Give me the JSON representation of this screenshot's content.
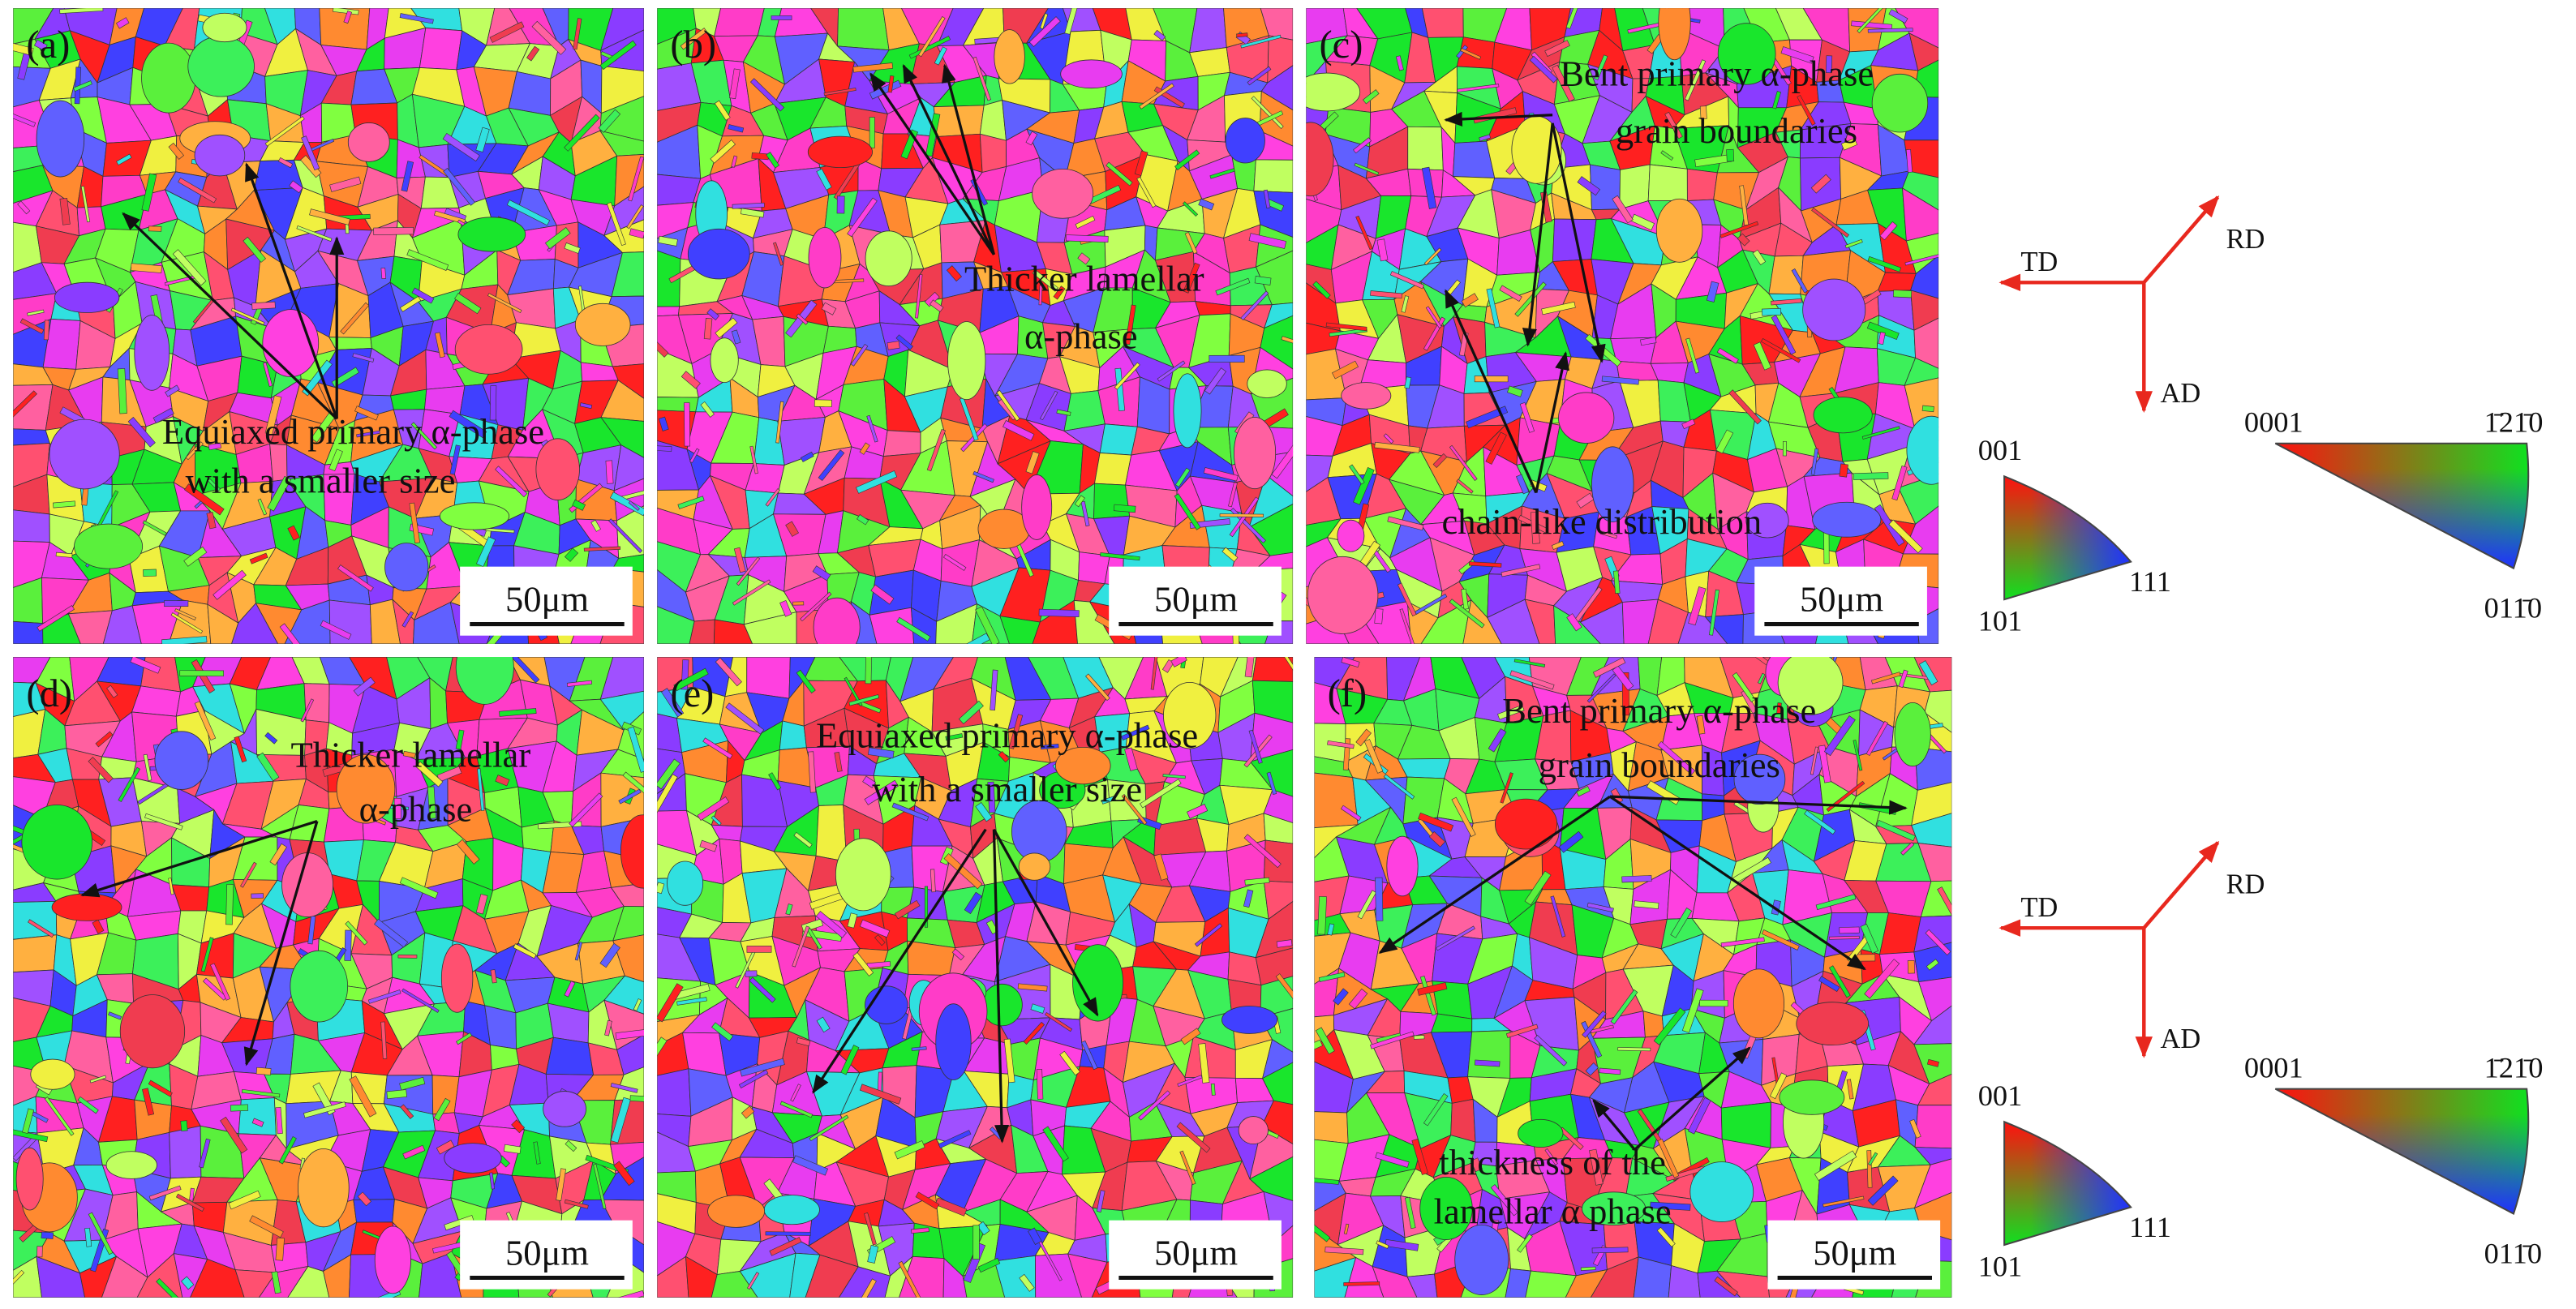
{
  "panels": [
    {
      "label": "(a)",
      "annotations": [
        "Equiaxed primary α-phase",
        "with a smaller size"
      ],
      "scale_bar": "50μm"
    },
    {
      "label": "(b)",
      "annotations": [
        "Thicker lamellar",
        "α-phase"
      ],
      "scale_bar": "50μm"
    },
    {
      "label": "(c)",
      "annotations": [
        "Bent primary α-phase",
        "grain boundaries",
        "chain-like distribution"
      ],
      "scale_bar": "50μm"
    },
    {
      "label": "(d)",
      "annotations": [
        "Thicker lamellar",
        "α-phase"
      ],
      "scale_bar": "50μm"
    },
    {
      "label": "(e)",
      "annotations": [
        "Equiaxed primary α-phase",
        "with a smaller size"
      ],
      "scale_bar": "50μm"
    },
    {
      "label": "(f)",
      "annotations": [
        "Bent primary  α-phase",
        "grain boundaries",
        "thickness of the",
        "lamellar α phase"
      ],
      "scale_bar": "50μm"
    }
  ],
  "legends": [
    {
      "axes": [
        "TD",
        "RD",
        "AD"
      ],
      "cubic_ipf": [
        "001",
        "101",
        "111"
      ],
      "hex_ipf": [
        "0001",
        "1̄21̄0",
        "011̄0"
      ]
    },
    {
      "axes": [
        "TD",
        "RD",
        "AD"
      ],
      "cubic_ipf": [
        "001",
        "101",
        "111"
      ],
      "hex_ipf": [
        "0001",
        "1̄21̄0",
        "011̄0"
      ]
    }
  ]
}
